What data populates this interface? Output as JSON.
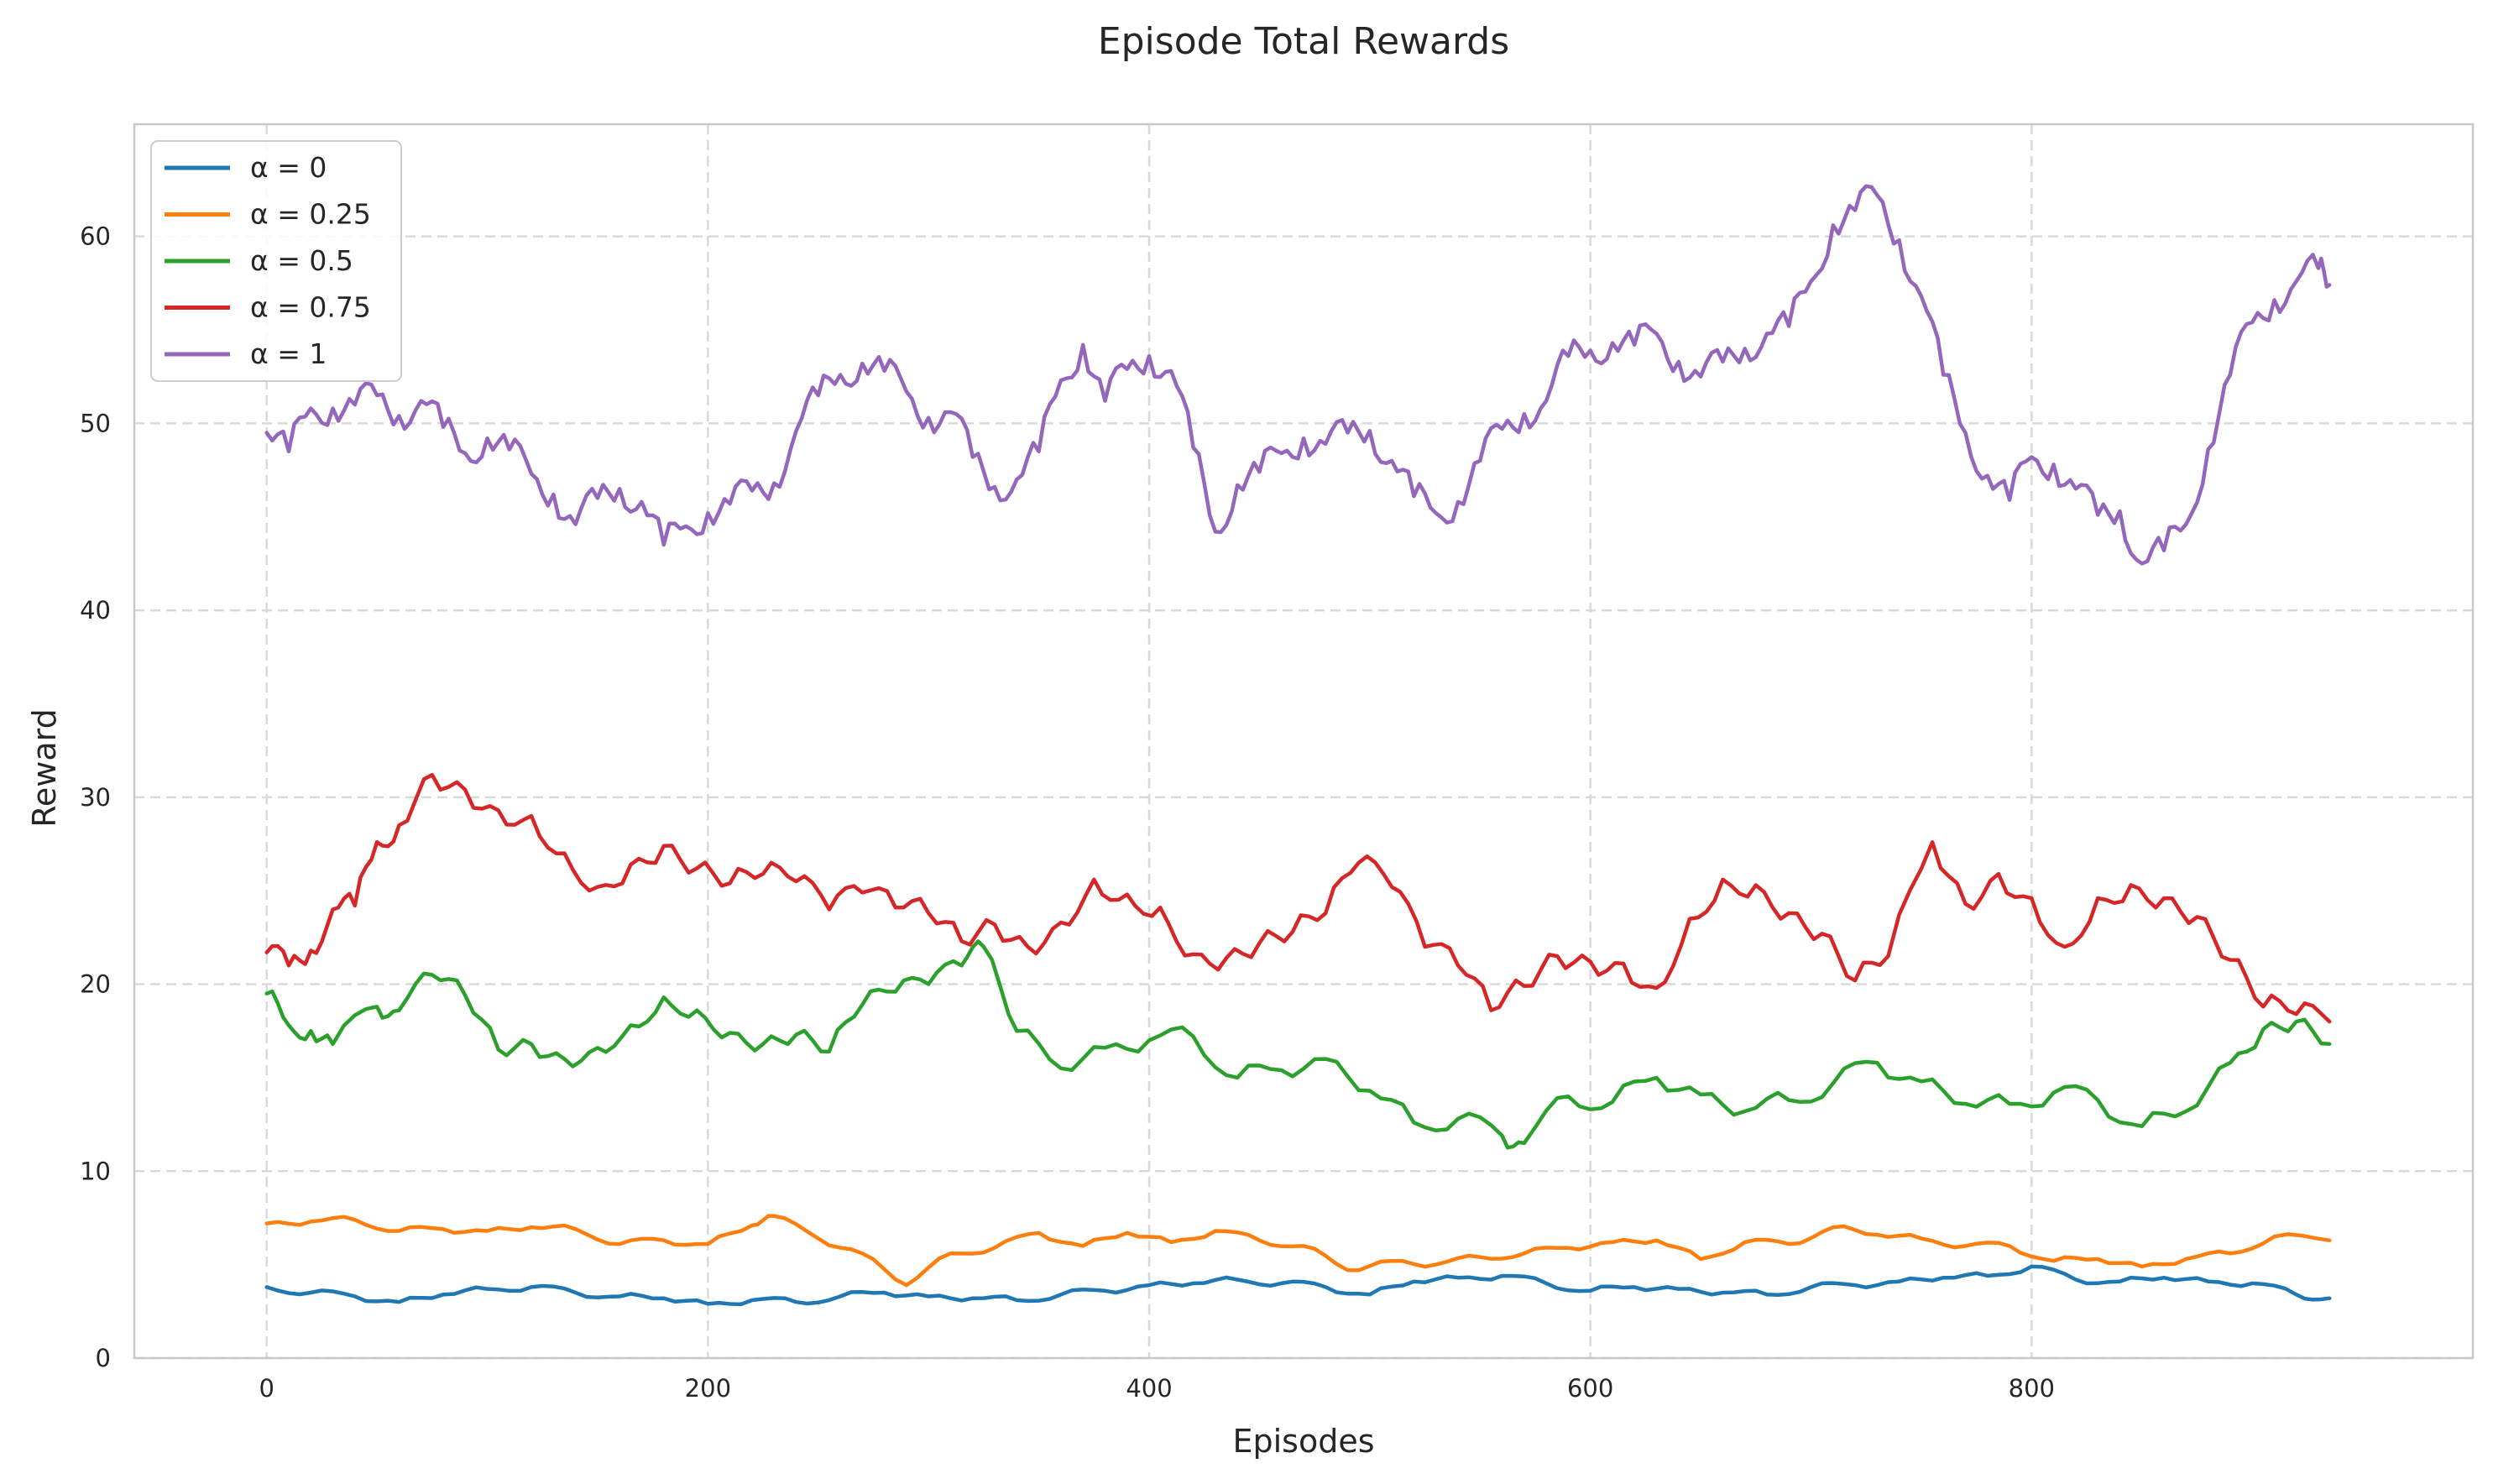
{
  "chart_data": {
    "type": "line",
    "title": "Episode Total Rewards",
    "xlabel": "Episodes",
    "ylabel": "Reward",
    "xlim": [
      -60,
      1000
    ],
    "ylim": [
      0,
      66
    ],
    "xticks": [
      0,
      200,
      400,
      600,
      800
    ],
    "yticks": [
      0,
      10,
      20,
      30,
      40,
      50,
      60
    ],
    "grid": true,
    "legend_position": "top-left",
    "series": [
      {
        "name": "α = 0",
        "color": "#1f77b4",
        "x": [
          0,
          20,
          40,
          60,
          80,
          100,
          120,
          140,
          160,
          180,
          200,
          220,
          240,
          260,
          280,
          300,
          320,
          340,
          360,
          380,
          400,
          420,
          440,
          460,
          480,
          500,
          520,
          540,
          560,
          580,
          600,
          620,
          640,
          660,
          680,
          700,
          720,
          740,
          760,
          780,
          800,
          820,
          840,
          860,
          880,
          900,
          920,
          935
        ],
        "values": [
          3.8,
          3.5,
          3.3,
          3.0,
          3.4,
          3.7,
          3.8,
          3.5,
          3.3,
          3.2,
          2.9,
          3.1,
          3.0,
          3.3,
          3.5,
          3.3,
          3.2,
          3.1,
          3.4,
          3.6,
          3.9,
          4.0,
          4.2,
          4.0,
          3.8,
          3.4,
          4.1,
          4.3,
          4.4,
          4.0,
          3.6,
          3.8,
          3.7,
          3.5,
          3.4,
          3.8,
          3.9,
          4.1,
          4.3,
          4.4,
          4.9,
          4.2,
          4.1,
          4.3,
          4.1,
          4.0,
          3.4,
          3.2
        ]
      },
      {
        "name": "α = 0.25",
        "color": "#ff7f0e",
        "x": [
          0,
          20,
          40,
          60,
          80,
          100,
          120,
          140,
          160,
          180,
          200,
          220,
          230,
          250,
          270,
          290,
          310,
          330,
          350,
          370,
          390,
          410,
          430,
          450,
          470,
          490,
          510,
          530,
          550,
          570,
          590,
          610,
          630,
          650,
          670,
          690,
          710,
          730,
          750,
          770,
          790,
          810,
          830,
          850,
          870,
          890,
          910,
          935
        ],
        "values": [
          7.2,
          7.3,
          7.4,
          6.8,
          6.9,
          6.8,
          7.0,
          6.9,
          6.1,
          6.3,
          6.1,
          7.1,
          7.6,
          6.4,
          5.6,
          3.9,
          5.6,
          5.9,
          6.7,
          6.0,
          6.7,
          6.2,
          6.8,
          6.3,
          6.0,
          4.7,
          5.2,
          5.0,
          5.4,
          5.6,
          5.9,
          6.2,
          6.3,
          5.3,
          6.2,
          6.1,
          7.0,
          6.6,
          6.4,
          6.0,
          6.0,
          5.2,
          5.3,
          4.9,
          5.3,
          5.6,
          6.5,
          6.3
        ]
      },
      {
        "name": "α = 0.5",
        "color": "#2ca02c",
        "x": [
          0,
          10,
          20,
          30,
          50,
          60,
          75,
          90,
          105,
          120,
          135,
          150,
          165,
          180,
          195,
          210,
          225,
          240,
          255,
          270,
          285,
          300,
          315,
          325,
          340,
          360,
          380,
          400,
          420,
          440,
          460,
          480,
          500,
          520,
          540,
          560,
          570,
          590,
          610,
          630,
          650,
          670,
          690,
          710,
          730,
          750,
          770,
          790,
          810,
          830,
          850,
          870,
          890,
          905,
          920,
          935
        ],
        "values": [
          19.5,
          17.8,
          17.5,
          16.8,
          18.8,
          18.6,
          20.5,
          19.4,
          16.5,
          16.8,
          16.0,
          16.6,
          17.8,
          19.3,
          18.6,
          17.4,
          16.8,
          17.3,
          16.4,
          18.9,
          19.6,
          20.0,
          21.0,
          22.0,
          17.5,
          15.5,
          16.6,
          17.0,
          17.2,
          15.0,
          15.4,
          16.0,
          14.3,
          12.6,
          12.8,
          11.9,
          11.5,
          14.0,
          13.7,
          15.0,
          14.1,
          13.2,
          13.8,
          14.7,
          15.8,
          14.8,
          13.6,
          13.6,
          14.2,
          13.8,
          12.4,
          13.2,
          15.8,
          17.6,
          18.0,
          16.8
        ]
      },
      {
        "name": "α = 0.75",
        "color": "#d62728",
        "x": [
          0,
          10,
          20,
          30,
          40,
          50,
          60,
          75,
          90,
          105,
          120,
          135,
          150,
          165,
          180,
          195,
          210,
          225,
          240,
          255,
          270,
          285,
          300,
          315,
          330,
          345,
          360,
          375,
          390,
          405,
          420,
          435,
          450,
          465,
          480,
          495,
          510,
          525,
          540,
          555,
          570,
          585,
          600,
          615,
          630,
          645,
          660,
          675,
          690,
          705,
          720,
          735,
          755,
          770,
          785,
          800,
          815,
          830,
          845,
          860,
          875,
          890,
          905,
          920,
          935
        ],
        "values": [
          21.7,
          21.0,
          21.8,
          24.0,
          24.2,
          27.6,
          28.5,
          31.2,
          30.4,
          29.3,
          29.0,
          27.0,
          25.2,
          26.4,
          27.4,
          26.2,
          25.4,
          25.9,
          25.5,
          24.0,
          24.9,
          24.1,
          23.8,
          22.3,
          23.2,
          22.0,
          23.3,
          25.6,
          24.8,
          24.1,
          21.6,
          21.4,
          22.2,
          22.8,
          23.8,
          26.5,
          25.2,
          22.0,
          21.0,
          18.6,
          19.9,
          21.5,
          21.2,
          21.1,
          19.8,
          23.5,
          25.6,
          25.3,
          23.8,
          22.7,
          20.2,
          21.5,
          27.6,
          24.3,
          25.9,
          24.6,
          22.0,
          24.6,
          25.3,
          24.6,
          23.6,
          21.3,
          18.8,
          18.4,
          18.0
        ]
      },
      {
        "name": "α = 1",
        "color": "#9467bd",
        "x": [
          0,
          10,
          20,
          30,
          40,
          50,
          60,
          70,
          80,
          90,
          100,
          110,
          120,
          130,
          140,
          150,
          160,
          170,
          180,
          190,
          200,
          210,
          220,
          230,
          240,
          250,
          260,
          270,
          280,
          290,
          300,
          310,
          320,
          330,
          340,
          350,
          360,
          370,
          380,
          390,
          400,
          410,
          420,
          430,
          440,
          450,
          460,
          470,
          480,
          490,
          500,
          510,
          520,
          530,
          540,
          550,
          560,
          570,
          580,
          590,
          600,
          610,
          620,
          630,
          640,
          650,
          660,
          670,
          680,
          690,
          700,
          710,
          720,
          730,
          740,
          750,
          760,
          770,
          780,
          790,
          800,
          810,
          820,
          830,
          840,
          850,
          860,
          870,
          880,
          890,
          900,
          910,
          920,
          930,
          935
        ],
        "values": [
          49.5,
          48.5,
          50.8,
          50.8,
          51.0,
          51.5,
          50.4,
          51.2,
          49.8,
          48.4,
          49.2,
          48.6,
          47.3,
          46.2,
          44.6,
          46.0,
          46.5,
          45.8,
          43.5,
          44.5,
          45.2,
          45.7,
          46.4,
          46.8,
          49.6,
          51.5,
          52.6,
          53.2,
          52.8,
          51.7,
          50.3,
          50.6,
          48.2,
          46.6,
          47.0,
          48.5,
          52.3,
          54.2,
          51.2,
          52.9,
          53.6,
          52.8,
          48.7,
          44.2,
          46.7,
          47.4,
          48.4,
          49.2,
          48.9,
          49.5,
          49.6,
          48.0,
          46.1,
          45.2,
          45.8,
          48.0,
          49.7,
          50.5,
          51.2,
          53.6,
          53.9,
          54.3,
          54.2,
          54.8,
          53.3,
          52.5,
          53.3,
          54.0,
          54.8,
          55.2,
          57.6,
          60.6,
          61.4,
          62.2,
          59.8,
          56.8,
          52.6,
          49.5,
          47.2,
          45.9,
          48.2,
          47.8,
          46.5,
          45.1,
          45.3,
          42.5,
          43.2,
          44.6,
          48.6,
          52.6,
          55.4,
          56.6,
          57.6,
          58.3,
          57.4
        ]
      }
    ]
  }
}
